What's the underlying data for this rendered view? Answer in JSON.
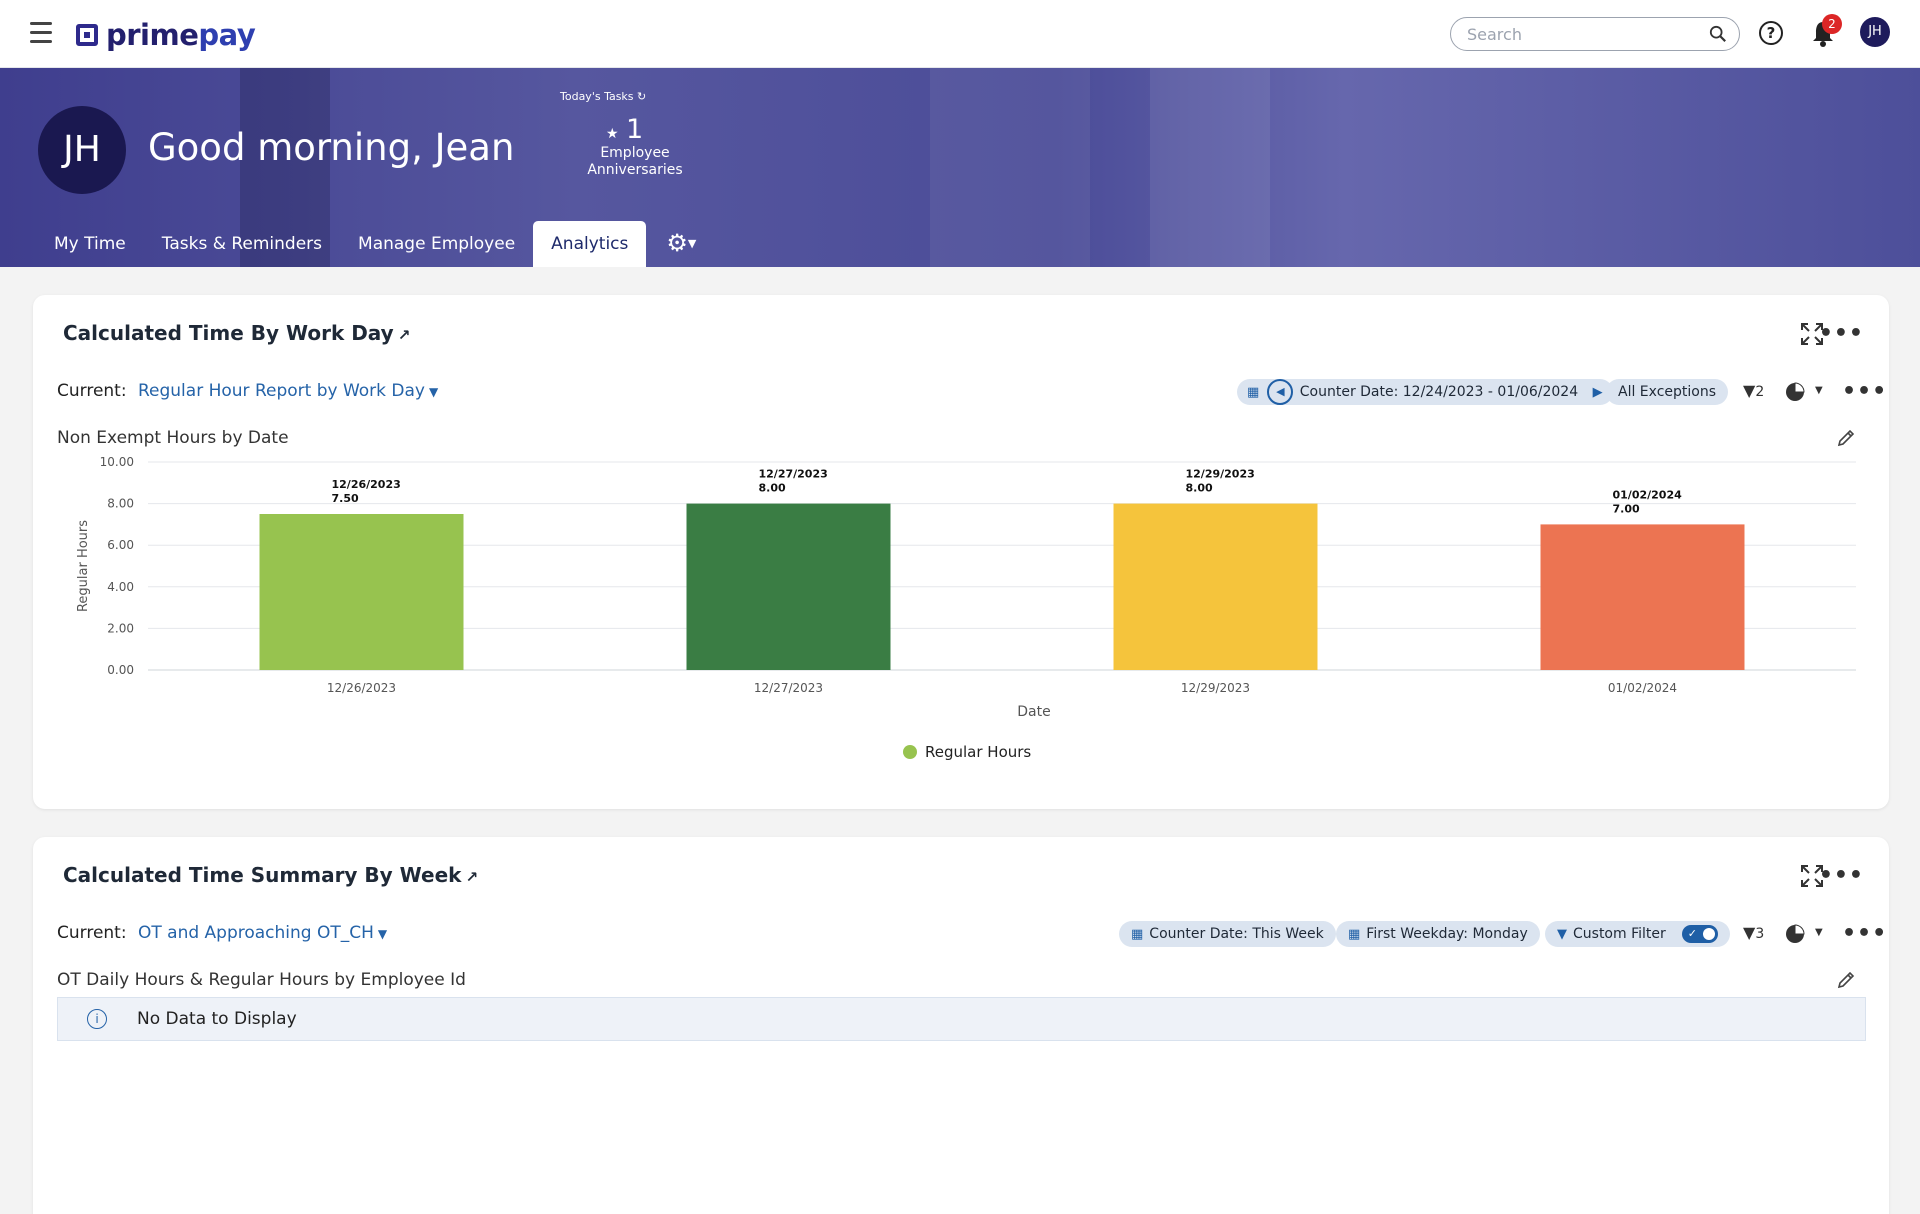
{
  "topbar": {
    "brand_prime": "prime",
    "brand_pay": "pay",
    "search_placeholder": "Search",
    "notification_count": "2",
    "user_initials": "JH"
  },
  "hero": {
    "initials": "JH",
    "greeting": "Good morning, Jean",
    "tasks_title": "Today's Tasks",
    "tasks_count": "1",
    "tasks_label": "Employee Anniversaries"
  },
  "tabs": [
    {
      "label": "My Time",
      "active": false
    },
    {
      "label": "Tasks & Reminders",
      "active": false
    },
    {
      "label": "Manage Employee",
      "active": false
    },
    {
      "label": "Analytics",
      "active": true
    }
  ],
  "card1": {
    "title": "Calculated Time By Work Day",
    "current_label": "Current:",
    "report_name": "Regular Hour Report by Work Day",
    "counter_date": "Counter Date: 12/24/2023 - 01/06/2024",
    "exceptions": "All Exceptions",
    "filter_count": "2",
    "chart_subtitle": "Non Exempt Hours by Date"
  },
  "chart_data": {
    "type": "bar",
    "title": "Non Exempt Hours by Date",
    "xlabel": "Date",
    "ylabel": "Regular Hours",
    "ylim": [
      0,
      10
    ],
    "yticks": [
      "0.00",
      "2.00",
      "4.00",
      "6.00",
      "8.00",
      "10.00"
    ],
    "categories": [
      "12/26/2023",
      "12/27/2023",
      "12/29/2023",
      "01/02/2024"
    ],
    "series": [
      {
        "name": "Regular Hours",
        "values": [
          7.5,
          8.0,
          8.0,
          7.0
        ]
      }
    ],
    "data_labels": [
      "7.50",
      "8.00",
      "8.00",
      "7.00"
    ],
    "bar_colors": [
      "#97c34f",
      "#3a7d44",
      "#f5c43c",
      "#ec7452"
    ],
    "legend_color": "#97c34f",
    "grid": true,
    "legend_position": "bottom"
  },
  "card2": {
    "title": "Calculated Time Summary By Week",
    "current_label": "Current:",
    "report_name": "OT and Approaching OT_CH",
    "counter_date": "Counter Date: This Week",
    "first_weekday": "First Weekday: Monday",
    "custom_filter": "Custom Filter",
    "filter_count": "3",
    "chart_subtitle": "OT Daily Hours & Regular Hours by Employee Id",
    "no_data": "No Data to Display"
  },
  "colors": {
    "brand": "#23206e",
    "accent": "#1f5fa6",
    "link": "#2563a8",
    "badge": "#dc2626"
  }
}
